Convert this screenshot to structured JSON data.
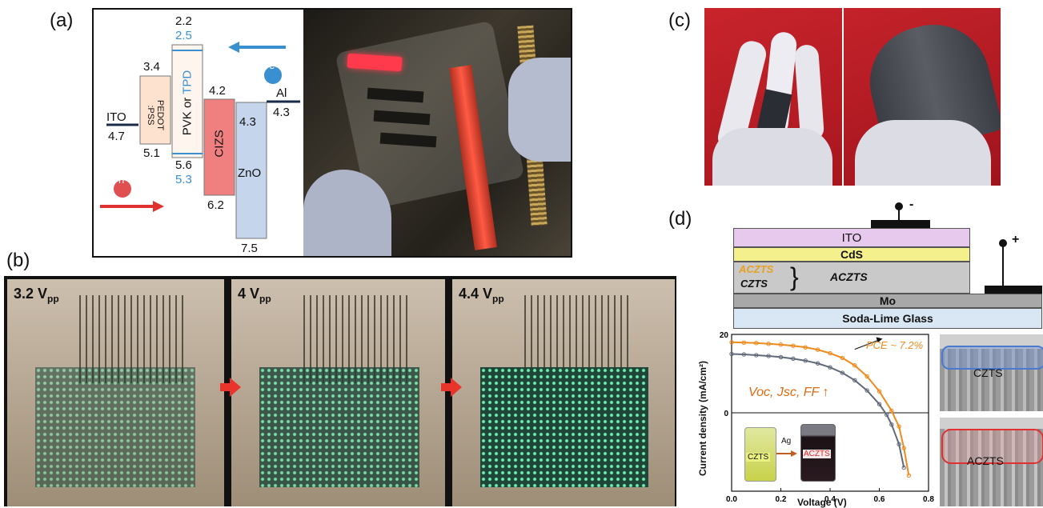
{
  "panel_labels": {
    "a": "(a)",
    "b": "(b)",
    "c": "(c)",
    "d": "(d)"
  },
  "energy_diagram": {
    "ito": {
      "label": "ITO",
      "value": "4.7"
    },
    "pedot": {
      "label_line1": "PEDOT",
      "label_line2": ":PSS",
      "top": "3.4",
      "bottom": "5.1"
    },
    "htl": {
      "label_prefix": "PVK or ",
      "label_alt": "TPD",
      "top": "2.2",
      "top_alt": "2.5",
      "bottom": "5.6",
      "bottom_alt": "5.3"
    },
    "cizs": {
      "label": "CIZS",
      "top": "4.2",
      "bottom": "6.2"
    },
    "zno": {
      "label": "ZnO",
      "top": "4.3",
      "bottom": "7.5"
    },
    "al": {
      "label": "Al",
      "value": "4.3"
    },
    "electron": "e",
    "hole": "h",
    "colors": {
      "alt_text": "#3a8fd0",
      "pedot": "#fde3cf",
      "cizs": "#f08080",
      "zno": "#c5d6ec",
      "electron_arrow": "#3a8fd0",
      "hole_arrow": "#e03030"
    }
  },
  "voltage_labels": [
    {
      "value": "3.2 V",
      "sub": "pp"
    },
    {
      "value": "4 V",
      "sub": "pp"
    },
    {
      "value": "4.4 V",
      "sub": "pp"
    }
  ],
  "device_stack": {
    "electrode_minus": "-",
    "electrode_plus": "+",
    "layers": {
      "ito": "ITO",
      "cds": "CdS",
      "aczts_left": "ACZTS",
      "czts_left": "CZTS",
      "aczts_right": "ACZTS",
      "mo": "Mo",
      "glass": "Soda-Lime Glass"
    },
    "colors": {
      "ito": "#e6c9ec",
      "cds": "#f4f08c",
      "absorber": "#c9c9c9",
      "mo": "#a8a8a8",
      "glass": "#d9e6f3",
      "aczts_text": "#e8a020"
    }
  },
  "sem_labels": {
    "top": "CZTS",
    "bottom": "ACZTS"
  },
  "inset": {
    "vial1": "CZTS",
    "arrow": "Ag",
    "vial2": "ACZTS"
  },
  "chart_data": {
    "type": "line",
    "xlabel": "Voltage (V)",
    "ylabel": "Current density (mA/cm²)",
    "xlim": [
      0.0,
      0.8
    ],
    "ylim": [
      -20,
      20
    ],
    "xticks": [
      "0.0",
      "0.2",
      "0.4",
      "0.6",
      "0.8"
    ],
    "yticks": [
      "20",
      "0"
    ],
    "series": [
      {
        "name": "ACZTS",
        "color": "#f08a1c",
        "x": [
          0.0,
          0.05,
          0.1,
          0.15,
          0.2,
          0.25,
          0.3,
          0.35,
          0.4,
          0.45,
          0.5,
          0.55,
          0.6,
          0.65,
          0.68,
          0.7,
          0.72
        ],
        "y": [
          18.0,
          17.9,
          17.8,
          17.6,
          17.4,
          17.1,
          16.7,
          16.1,
          15.2,
          14.0,
          12.1,
          9.3,
          5.5,
          0.5,
          -3.5,
          -9.0,
          -16.0
        ]
      },
      {
        "name": "CZTS",
        "color": "#606a78",
        "x": [
          0.0,
          0.05,
          0.1,
          0.15,
          0.2,
          0.25,
          0.3,
          0.35,
          0.4,
          0.45,
          0.5,
          0.55,
          0.6,
          0.63,
          0.65,
          0.68,
          0.7
        ],
        "y": [
          15.0,
          14.9,
          14.7,
          14.5,
          14.2,
          13.8,
          13.3,
          12.6,
          11.6,
          10.2,
          8.3,
          5.7,
          2.2,
          -0.5,
          -3.0,
          -8.0,
          -14.0
        ]
      }
    ],
    "annotations": {
      "pce": "PCE ~ 7.2%",
      "params": "Voc, Jsc, FF ↑"
    }
  }
}
